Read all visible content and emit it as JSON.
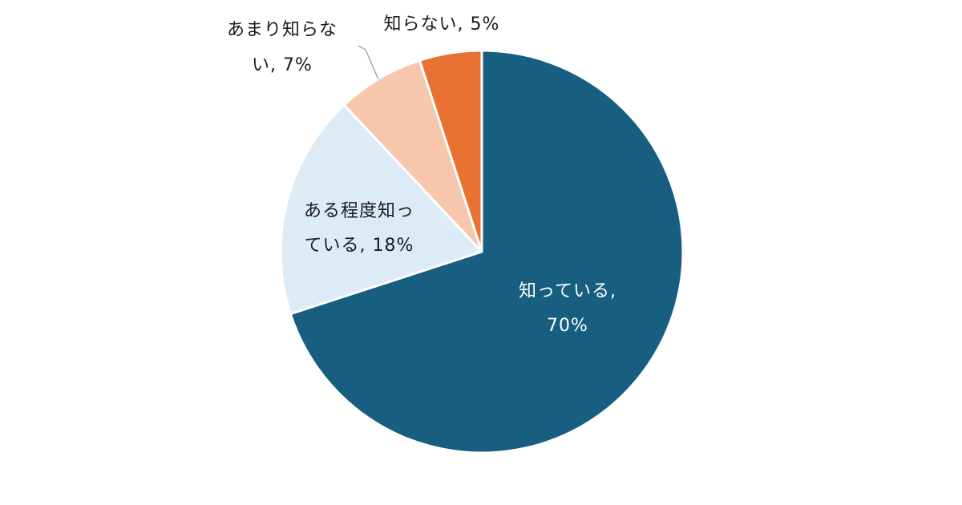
{
  "chart_data": {
    "type": "pie",
    "title": "",
    "start_angle_deg": 0,
    "direction": "clockwise",
    "slices": [
      {
        "label_lines": [
          "知っている,",
          "70%"
        ],
        "category": "知っている",
        "value": 70,
        "color": "#175E80",
        "label_color": "#FFFFFF"
      },
      {
        "label_lines": [
          "ある程度知っ",
          "ている, 18%"
        ],
        "category": "ある程度知っている",
        "value": 18,
        "color": "#DDEBF7",
        "label_color": "#1A1A1A"
      },
      {
        "label_lines": [
          "あまり知らな",
          "い, 7%"
        ],
        "category": "あまり知らない",
        "value": 7,
        "color": "#F6C6AD",
        "label_color": "#1A1A1A"
      },
      {
        "label_lines": [
          "知らない, 5%"
        ],
        "category": "知らない",
        "value": 5,
        "color": "#E97132",
        "label_color": "#1A1A1A"
      }
    ]
  }
}
